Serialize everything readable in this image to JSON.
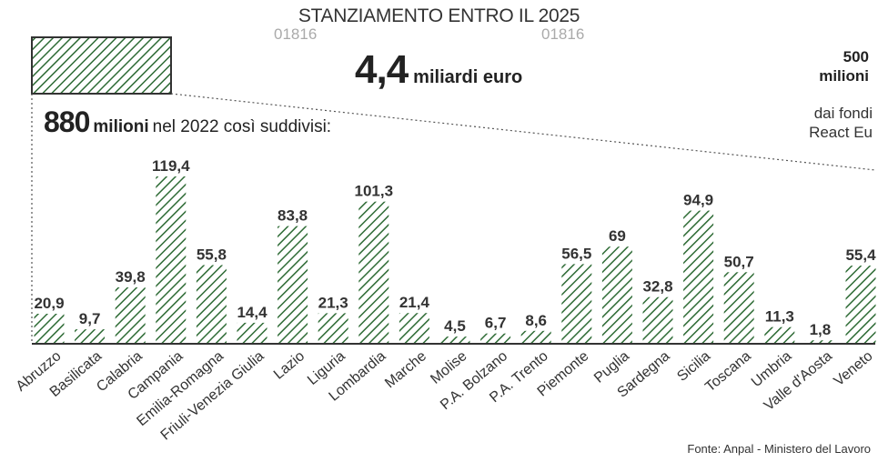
{
  "header": {
    "title": "STANZIAMENTO ENTRO IL 2025",
    "watermark": "01816",
    "total_value": "4,4",
    "total_unit": "miliardi euro",
    "react_value": "500",
    "react_unit": "milioni",
    "react_desc_1": "dai fondi",
    "react_desc_2": "React Eu",
    "sub_value": "880",
    "sub_unit": "milioni",
    "sub_text": "nel 2022 così suddivisi:"
  },
  "source": "Fonte: Anpal - Ministero del Lavoro",
  "colors": {
    "bar_hatch": "#2e6b35",
    "axis": "#333333",
    "text": "#222222"
  },
  "chart_data": {
    "type": "bar",
    "categories": [
      "Abruzzo",
      "Basilicata",
      "Calabria",
      "Campania",
      "Emilia-Romagna",
      "Friuli-Venezia Giulia",
      "Lazio",
      "Liguria",
      "Lombardia",
      "Marche",
      "Molise",
      "P.A. Bolzano",
      "P.A. Trento",
      "Piemonte",
      "Puglia",
      "Sardegna",
      "Sicilia",
      "Toscana",
      "Umbria",
      "Valle d'Aosta",
      "Veneto"
    ],
    "values": [
      20.9,
      9.7,
      39.8,
      119.4,
      55.8,
      14.4,
      83.8,
      21.3,
      101.3,
      21.4,
      4.5,
      6.7,
      8.6,
      56.5,
      69,
      32.8,
      94.9,
      50.7,
      11.3,
      1.8,
      55.4
    ],
    "labels": [
      "20,9",
      "9,7",
      "39,8",
      "119,4",
      "55,8",
      "14,4",
      "83,8",
      "21,3",
      "101,3",
      "21,4",
      "4,5",
      "6,7",
      "8,6",
      "56,5",
      "69",
      "32,8",
      "94,9",
      "50,7",
      "11,3",
      "1,8",
      "55,4"
    ],
    "title": "",
    "xlabel": "",
    "ylabel": "",
    "ylim": [
      0,
      120
    ],
    "grid": false,
    "legend": "none"
  }
}
